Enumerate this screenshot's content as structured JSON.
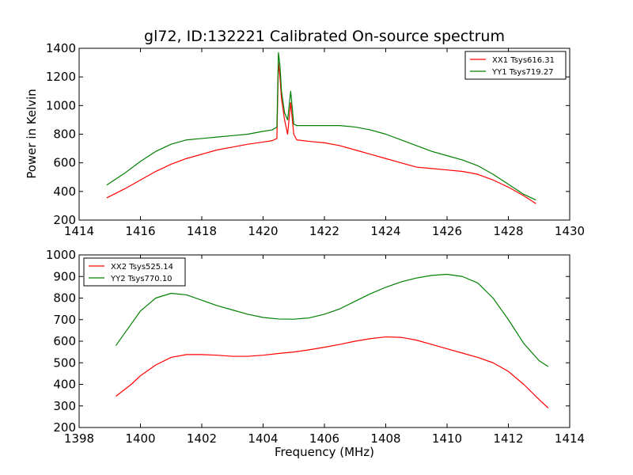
{
  "chart_data": [
    {
      "type": "line",
      "title": "gl72, ID:132221 Calibrated On-source spectrum",
      "xlabel": "",
      "ylabel": "Power in Kelvin",
      "xlim": [
        1414,
        1430
      ],
      "ylim": [
        200,
        1400
      ],
      "xticks": [
        1414,
        1416,
        1418,
        1420,
        1422,
        1424,
        1426,
        1428,
        1430
      ],
      "yticks": [
        200,
        400,
        600,
        800,
        1000,
        1200,
        1400
      ],
      "legend_position": "top-right",
      "series": [
        {
          "name": "XX1 Tsys616.31",
          "color": "#ff0000",
          "points": [
            [
              1414.9,
              355
            ],
            [
              1415.5,
              420
            ],
            [
              1416.0,
              480
            ],
            [
              1416.5,
              540
            ],
            [
              1417.0,
              590
            ],
            [
              1417.5,
              630
            ],
            [
              1418.0,
              660
            ],
            [
              1418.5,
              690
            ],
            [
              1419.0,
              710
            ],
            [
              1419.5,
              730
            ],
            [
              1420.0,
              745
            ],
            [
              1420.3,
              755
            ],
            [
              1420.45,
              770
            ],
            [
              1420.5,
              1300
            ],
            [
              1420.55,
              1200
            ],
            [
              1420.6,
              1050
            ],
            [
              1420.7,
              900
            ],
            [
              1420.8,
              800
            ],
            [
              1420.9,
              1020
            ],
            [
              1421.0,
              800
            ],
            [
              1421.1,
              760
            ],
            [
              1421.5,
              750
            ],
            [
              1422.0,
              740
            ],
            [
              1422.5,
              720
            ],
            [
              1423.0,
              690
            ],
            [
              1423.5,
              660
            ],
            [
              1424.0,
              630
            ],
            [
              1424.5,
              600
            ],
            [
              1425.0,
              570
            ],
            [
              1425.5,
              560
            ],
            [
              1426.0,
              550
            ],
            [
              1426.5,
              540
            ],
            [
              1427.0,
              520
            ],
            [
              1427.5,
              480
            ],
            [
              1428.0,
              430
            ],
            [
              1428.5,
              370
            ],
            [
              1428.9,
              315
            ]
          ]
        },
        {
          "name": "YY1 Tsys719.27",
          "color": "#008000",
          "points": [
            [
              1414.9,
              445
            ],
            [
              1415.5,
              530
            ],
            [
              1416.0,
              610
            ],
            [
              1416.5,
              680
            ],
            [
              1417.0,
              730
            ],
            [
              1417.5,
              760
            ],
            [
              1418.0,
              770
            ],
            [
              1418.5,
              780
            ],
            [
              1419.0,
              790
            ],
            [
              1419.5,
              800
            ],
            [
              1420.0,
              820
            ],
            [
              1420.3,
              830
            ],
            [
              1420.45,
              850
            ],
            [
              1420.5,
              1370
            ],
            [
              1420.55,
              1280
            ],
            [
              1420.6,
              1100
            ],
            [
              1420.7,
              950
            ],
            [
              1420.8,
              900
            ],
            [
              1420.9,
              1100
            ],
            [
              1421.0,
              870
            ],
            [
              1421.1,
              860
            ],
            [
              1421.5,
              860
            ],
            [
              1422.0,
              860
            ],
            [
              1422.5,
              860
            ],
            [
              1423.0,
              850
            ],
            [
              1423.5,
              830
            ],
            [
              1424.0,
              800
            ],
            [
              1424.5,
              760
            ],
            [
              1425.0,
              720
            ],
            [
              1425.5,
              680
            ],
            [
              1426.0,
              650
            ],
            [
              1426.5,
              620
            ],
            [
              1427.0,
              580
            ],
            [
              1427.5,
              520
            ],
            [
              1428.0,
              450
            ],
            [
              1428.5,
              380
            ],
            [
              1428.9,
              340
            ]
          ]
        }
      ]
    },
    {
      "type": "line",
      "title": "",
      "xlabel": "Frequency (MHz)",
      "ylabel": "",
      "xlim": [
        1398,
        1414
      ],
      "ylim": [
        200,
        1000
      ],
      "xticks": [
        1398,
        1400,
        1402,
        1404,
        1406,
        1408,
        1410,
        1412,
        1414
      ],
      "yticks": [
        200,
        300,
        400,
        500,
        600,
        700,
        800,
        900,
        1000
      ],
      "legend_position": "top-left",
      "series": [
        {
          "name": "XX2 Tsys525.14",
          "color": "#ff0000",
          "points": [
            [
              1399.2,
              345
            ],
            [
              1399.7,
              400
            ],
            [
              1400.0,
              440
            ],
            [
              1400.5,
              490
            ],
            [
              1401.0,
              525
            ],
            [
              1401.5,
              538
            ],
            [
              1402.0,
              538
            ],
            [
              1402.5,
              535
            ],
            [
              1403.0,
              530
            ],
            [
              1403.5,
              530
            ],
            [
              1404.0,
              535
            ],
            [
              1404.5,
              543
            ],
            [
              1405.0,
              550
            ],
            [
              1405.5,
              560
            ],
            [
              1406.0,
              572
            ],
            [
              1406.5,
              585
            ],
            [
              1407.0,
              600
            ],
            [
              1407.5,
              612
            ],
            [
              1408.0,
              620
            ],
            [
              1408.5,
              618
            ],
            [
              1409.0,
              605
            ],
            [
              1409.5,
              585
            ],
            [
              1410.0,
              565
            ],
            [
              1410.5,
              545
            ],
            [
              1411.0,
              525
            ],
            [
              1411.5,
              500
            ],
            [
              1412.0,
              460
            ],
            [
              1412.5,
              400
            ],
            [
              1413.0,
              330
            ],
            [
              1413.3,
              290
            ]
          ]
        },
        {
          "name": "YY2 Tsys770.10",
          "color": "#008000",
          "points": [
            [
              1399.2,
              580
            ],
            [
              1399.7,
              680
            ],
            [
              1400.0,
              740
            ],
            [
              1400.5,
              800
            ],
            [
              1401.0,
              822
            ],
            [
              1401.5,
              815
            ],
            [
              1402.0,
              790
            ],
            [
              1402.5,
              765
            ],
            [
              1403.0,
              745
            ],
            [
              1403.5,
              725
            ],
            [
              1404.0,
              710
            ],
            [
              1404.5,
              703
            ],
            [
              1405.0,
              702
            ],
            [
              1405.5,
              708
            ],
            [
              1406.0,
              725
            ],
            [
              1406.5,
              750
            ],
            [
              1407.0,
              785
            ],
            [
              1407.5,
              820
            ],
            [
              1408.0,
              850
            ],
            [
              1408.5,
              875
            ],
            [
              1409.0,
              893
            ],
            [
              1409.5,
              905
            ],
            [
              1410.0,
              910
            ],
            [
              1410.5,
              900
            ],
            [
              1411.0,
              870
            ],
            [
              1411.5,
              800
            ],
            [
              1412.0,
              700
            ],
            [
              1412.5,
              590
            ],
            [
              1413.0,
              510
            ],
            [
              1413.3,
              482
            ]
          ]
        }
      ]
    }
  ]
}
